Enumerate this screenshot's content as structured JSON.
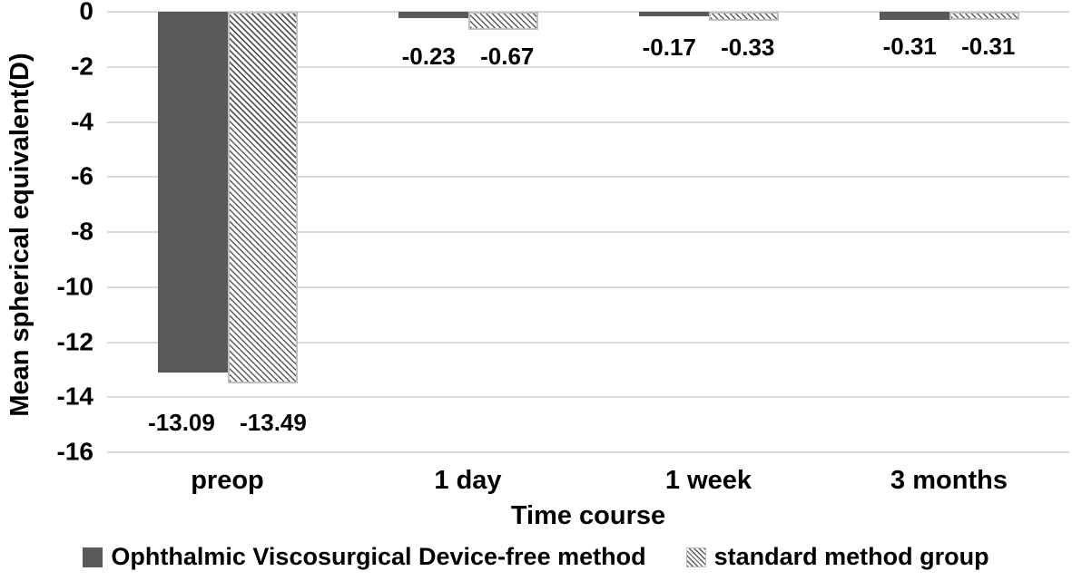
{
  "chart_data": {
    "type": "bar",
    "categories": [
      "preop",
      "1 day",
      "1 week",
      "3 months"
    ],
    "series": [
      {
        "name": "Ophthalmic Viscosurgical Device-free method",
        "pattern": "solid",
        "color": "#595959",
        "values": [
          -13.09,
          -0.23,
          -0.17,
          -0.31
        ]
      },
      {
        "name": "standard method group",
        "pattern": "diagonal-hatch",
        "color": "#595959",
        "values": [
          -13.49,
          -0.67,
          -0.33,
          -0.31
        ]
      }
    ],
    "data_labels": [
      [
        "-13.09",
        "-0.23",
        "-0.17",
        "-0.31"
      ],
      [
        "-13.49",
        "-0.67",
        "-0.33",
        "-0.31"
      ]
    ],
    "xlabel": "Time course",
    "ylabel": "Mean spherical equivalent(D)",
    "yticks": [
      "0",
      "-2",
      "-4",
      "-6",
      "-8",
      "-10",
      "-12",
      "-14",
      "-16"
    ],
    "ylim": [
      -16,
      0
    ],
    "grid": true,
    "legend_position": "bottom",
    "colors": {
      "bar_fill": "#595959",
      "hatch_line": "#595959",
      "hatch_border": "#bfbfbf",
      "gridline": "#d9d9d9",
      "text": "#000000",
      "background": "#ffffff"
    }
  }
}
